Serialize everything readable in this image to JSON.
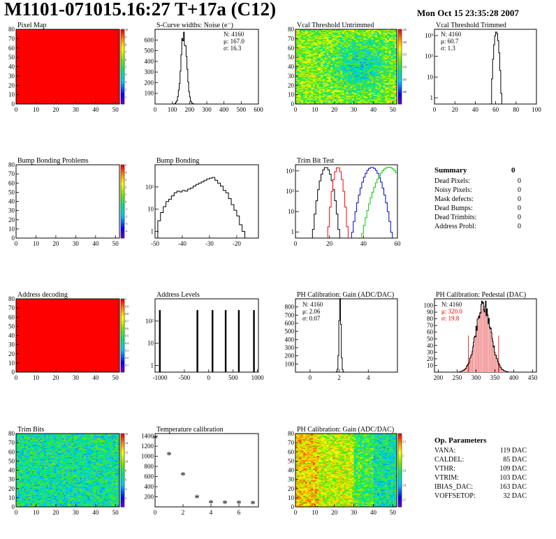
{
  "header": {
    "title": "M1101-071015.16:27 T+17a (C12)",
    "date": "Mon Oct 15 23:35:28 2007"
  },
  "chart_data": [
    {
      "id": "pixel_map",
      "type": "heatmap",
      "title": "Pixel Map",
      "xlim": [
        0,
        52
      ],
      "ylim": [
        0,
        80
      ],
      "xticks": [
        "0",
        "10",
        "20",
        "30",
        "40",
        "50"
      ],
      "yticks": [
        "0",
        "10",
        "20",
        "30",
        "40",
        "50",
        "60",
        "70",
        "80"
      ],
      "color_scale": {
        "min": 0,
        "max": 10,
        "ticks": [
          "1",
          "2",
          "3",
          "4",
          "5",
          "6",
          "7",
          "8",
          "9",
          "10"
        ]
      },
      "fill": "uniform",
      "value": 10
    },
    {
      "id": "scurve",
      "type": "bar",
      "title": "S-Curve widths: Noise (e⁻)",
      "xlim": [
        0,
        600
      ],
      "ylim": [
        0,
        700
      ],
      "xticks": [
        "0",
        "100",
        "200",
        "300",
        "400",
        "500",
        "600"
      ],
      "yticks": [
        "100",
        "200",
        "300",
        "400",
        "500",
        "600"
      ],
      "stats": {
        "N": "N: 4160",
        "mu": "μ: 167.0",
        "sigma": "σ: 16.3"
      },
      "mean": 167.0,
      "sigma": 16.3,
      "peak": 660
    },
    {
      "id": "vcal_untrimmed",
      "type": "heatmap",
      "title": "Vcal Threshold Untrimmed",
      "xlim": [
        0,
        52
      ],
      "ylim": [
        0,
        80
      ],
      "xticks": [
        "0",
        "10",
        "20",
        "30",
        "40",
        "50"
      ],
      "yticks": [
        "0",
        "10",
        "20",
        "30",
        "40",
        "50",
        "60",
        "70",
        "80"
      ],
      "color_scale": {
        "min": 95,
        "max": 125,
        "ticks": [
          "100",
          "105",
          "110",
          "115",
          "120",
          "125"
        ]
      },
      "fill": "noisy"
    },
    {
      "id": "vcal_trimmed",
      "type": "bar",
      "title": "Vcal Threshold Trimmed",
      "log_y": true,
      "xlim": [
        0,
        100
      ],
      "ylim": [
        0.5,
        2000
      ],
      "xticks": [
        "0",
        "20",
        "40",
        "60",
        "80",
        "100"
      ],
      "yticks": [
        "1",
        "10",
        "10²",
        "10³"
      ],
      "stats": {
        "N": "N: 4160",
        "mu": "μ: 60.7",
        "sigma": "σ:  1.3"
      },
      "mean": 60.7,
      "sigma": 1.3,
      "peak": 1500
    },
    {
      "id": "bump_problems",
      "type": "heatmap",
      "title": "Bump Bonding Problems",
      "xlim": [
        0,
        52
      ],
      "ylim": [
        0,
        80
      ],
      "xticks": [
        "0",
        "10",
        "20",
        "30",
        "40",
        "50"
      ],
      "yticks": [
        "0",
        "10",
        "20",
        "30",
        "40",
        "50",
        "60",
        "70",
        "80"
      ],
      "color_scale": {
        "min": -5,
        "max": 5,
        "ticks": [
          "-4",
          "-3",
          "-2",
          "-1",
          "0",
          "1",
          "2",
          "3",
          "4",
          "5"
        ]
      },
      "fill": "empty"
    },
    {
      "id": "bump_bonding",
      "type": "bar",
      "title": "Bump Bonding",
      "log_y": true,
      "xlim": [
        -50,
        -12
      ],
      "ylim": [
        0.5,
        1000
      ],
      "xticks": [
        "-50",
        "-40",
        "-30",
        "-20"
      ],
      "yticks": [
        "1",
        "10",
        "10²"
      ],
      "values": [
        [
          -49,
          3
        ],
        [
          -48,
          7
        ],
        [
          -47,
          13
        ],
        [
          -46,
          22
        ],
        [
          -45,
          28
        ],
        [
          -44,
          40
        ],
        [
          -43,
          55
        ],
        [
          -42,
          65
        ],
        [
          -41,
          60
        ],
        [
          -40,
          70
        ],
        [
          -39,
          65
        ],
        [
          -38,
          80
        ],
        [
          -37,
          90
        ],
        [
          -36,
          110
        ],
        [
          -35,
          130
        ],
        [
          -34,
          150
        ],
        [
          -33,
          170
        ],
        [
          -32,
          200
        ],
        [
          -31,
          230
        ],
        [
          -30,
          250
        ],
        [
          -29,
          270
        ],
        [
          -28,
          200
        ],
        [
          -27,
          150
        ],
        [
          -26,
          110
        ],
        [
          -25,
          70
        ],
        [
          -24,
          55
        ],
        [
          -23,
          30
        ],
        [
          -22,
          16
        ],
        [
          -21,
          9
        ],
        [
          -20,
          5
        ],
        [
          -19,
          2
        ],
        [
          -18,
          1
        ]
      ]
    },
    {
      "id": "trim_bit_test",
      "type": "line",
      "title": "Trim Bit Test",
      "log_y": true,
      "xlim": [
        0,
        60
      ],
      "ylim": [
        0.5,
        2000
      ],
      "xticks": [
        "0",
        "20",
        "40",
        "60"
      ],
      "yticks": [
        "1",
        "10",
        "10²",
        "10³"
      ],
      "series": [
        {
          "color": "#000000",
          "mean": 18,
          "sigma": 2
        },
        {
          "color": "#ff0000",
          "mean": 25,
          "sigma": 1.5
        },
        {
          "color": "#0000c8",
          "mean": 45,
          "sigma": 3
        },
        {
          "color": "#00c800",
          "mean": 55,
          "sigma": 4
        }
      ]
    },
    {
      "id": "address_decoding",
      "type": "heatmap",
      "title": "Address decoding",
      "xlim": [
        0,
        52
      ],
      "ylim": [
        0,
        80
      ],
      "xticks": [
        "0",
        "10",
        "20",
        "30",
        "40",
        "50"
      ],
      "yticks": [
        "0",
        "10",
        "20",
        "30",
        "40",
        "50",
        "60",
        "70",
        "80"
      ],
      "color_scale": {
        "min": 0,
        "max": 1,
        "ticks": [
          "0.1",
          "0.2",
          "0.3",
          "0.4",
          "0.5",
          "0.6",
          "0.7",
          "0.8",
          "0.9",
          "1"
        ]
      },
      "fill": "uniform",
      "value": 1
    },
    {
      "id": "address_levels",
      "type": "bar",
      "title": "Address Levels",
      "log_y": true,
      "xlim": [
        -1100,
        1020
      ],
      "ylim": [
        0.5,
        1000
      ],
      "xticks": [
        "-1000",
        "-500",
        "0",
        "500",
        "1000"
      ],
      "yticks": [
        "1",
        "10",
        "10²"
      ],
      "peaks": [
        -1000,
        -230,
        80,
        350,
        620,
        930
      ]
    },
    {
      "id": "ph_gain",
      "type": "bar",
      "title": "PH Calibration: Gain (ADC/DAC)",
      "xlim": [
        -1,
        6
      ],
      "ylim": [
        0,
        900
      ],
      "xticks": [
        "0",
        "2",
        "4"
      ],
      "yticks": [
        "100",
        "200",
        "300",
        "400",
        "500",
        "600",
        "700",
        "800"
      ],
      "stats": {
        "N": "N: 4160",
        "mu": "μ: 2.06",
        "sigma": "σ: 0.07"
      },
      "mean": 2.06,
      "sigma": 0.07,
      "peak": 830
    },
    {
      "id": "ph_pedestal",
      "type": "bar",
      "title": "PH Calibration: Pedestal (DAC)",
      "xlim": [
        190,
        460
      ],
      "ylim": [
        0,
        110
      ],
      "xticks": [
        "200",
        "250",
        "300",
        "350",
        "400",
        "450"
      ],
      "yticks": [
        "10",
        "20",
        "30",
        "40",
        "50",
        "60",
        "70",
        "80",
        "90",
        "100"
      ],
      "stats": {
        "N": "N: 4160",
        "mu": "μ: 320.0",
        "sigma": "σ: 19.8"
      },
      "mean": 320.0,
      "sigma": 19.8,
      "peak": 100,
      "fit_lines": [
        280,
        360
      ]
    },
    {
      "id": "trim_bits",
      "type": "heatmap",
      "title": "Trim Bits",
      "xlim": [
        0,
        52
      ],
      "ylim": [
        0,
        80
      ],
      "xticks": [
        "0",
        "10",
        "20",
        "30",
        "40",
        "50"
      ],
      "yticks": [
        "0",
        "10",
        "20",
        "30",
        "40",
        "50",
        "60",
        "70",
        "80"
      ],
      "color_scale": {
        "min": 0,
        "max": 16,
        "ticks": [
          "2",
          "4",
          "6",
          "8",
          "10",
          "12",
          "14",
          "16"
        ]
      },
      "fill": "noisy"
    },
    {
      "id": "temperature",
      "type": "scatter",
      "title": "Temperature calibration",
      "xlim": [
        0,
        7.4
      ],
      "ylim": [
        0,
        1450
      ],
      "xticks": [
        "0",
        "2",
        "4",
        "6"
      ],
      "yticks": [
        "200",
        "400",
        "600",
        "800",
        "1000",
        "1200",
        "1400"
      ],
      "values": [
        [
          0,
          1350
        ],
        [
          1,
          1030
        ],
        [
          2,
          630
        ],
        [
          3,
          180
        ],
        [
          4,
          75
        ],
        [
          5,
          70
        ],
        [
          6,
          70
        ],
        [
          7,
          65
        ]
      ]
    },
    {
      "id": "ph_gain_map",
      "type": "heatmap",
      "title": "PH Calibration: Gain (ADC/DAC)",
      "xlim": [
        0,
        52
      ],
      "ylim": [
        0,
        80
      ],
      "xticks": [
        "0",
        "10",
        "20",
        "30",
        "40",
        "50"
      ],
      "yticks": [
        "0",
        "10",
        "20",
        "30",
        "40",
        "50",
        "60",
        "70",
        "80"
      ],
      "color_scale": {
        "min": 1.65,
        "max": 2.15,
        "ticks": [
          "1.7",
          "1.8",
          "1.9",
          "2",
          "2.1"
        ]
      },
      "fill": "gain"
    }
  ],
  "summary": {
    "title": "Summary",
    "total": "0",
    "rows": [
      {
        "label": "Dead Pixels:",
        "value": "0"
      },
      {
        "label": "Noisy Pixels:",
        "value": "0"
      },
      {
        "label": "Mask defects:",
        "value": "0"
      },
      {
        "label": "Dead Bumps:",
        "value": "0"
      },
      {
        "label": "Dead Trimbits:",
        "value": "0"
      },
      {
        "label": "Address Probl:",
        "value": "0"
      }
    ]
  },
  "op_params": {
    "title": "Op. Parameters",
    "rows": [
      {
        "label": "VANA:",
        "value": "119 DAC"
      },
      {
        "label": "CALDEL:",
        "value": "85 DAC"
      },
      {
        "label": "VTHR:",
        "value": "109 DAC"
      },
      {
        "label": "VTRIM:",
        "value": "103 DAC"
      },
      {
        "label": "IBIAS_DAC:",
        "value": "163 DAC"
      },
      {
        "label": "VOFFSETOP:",
        "value": "32 DAC"
      }
    ]
  }
}
